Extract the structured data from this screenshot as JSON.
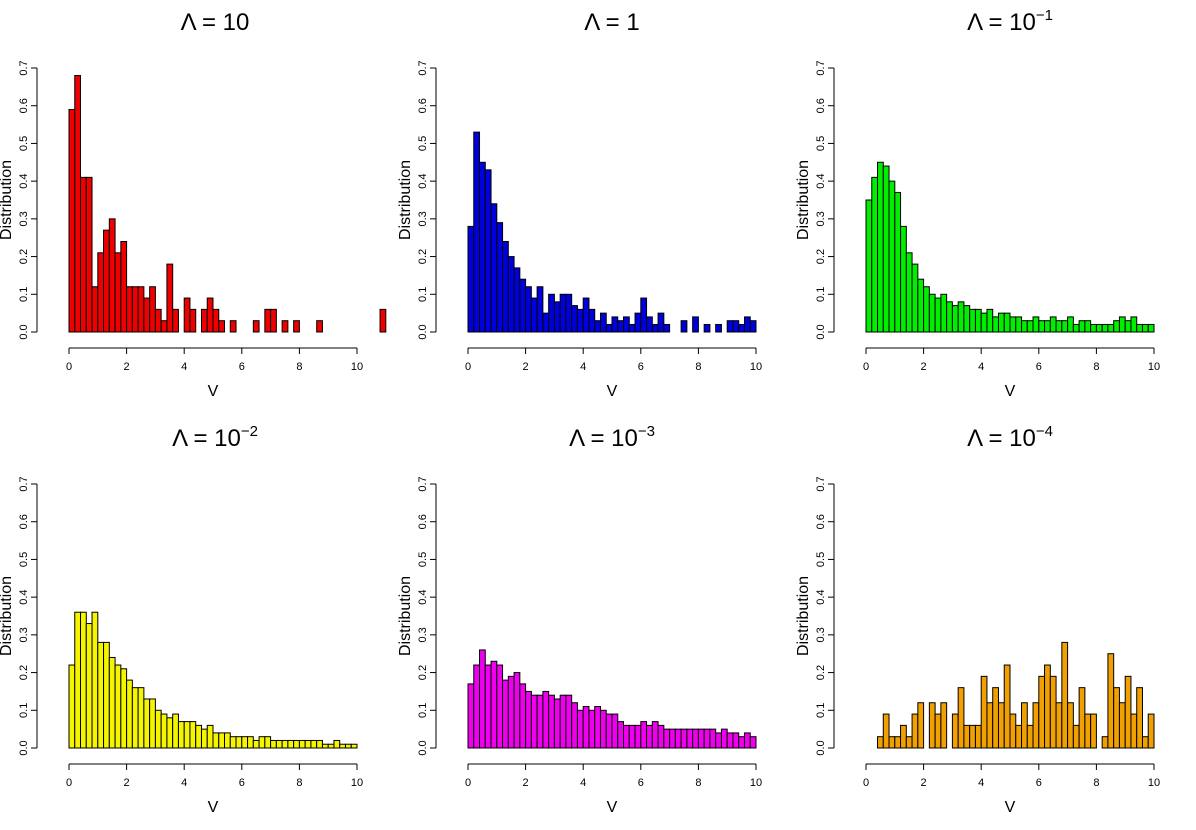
{
  "chart_data": [
    {
      "type": "bar",
      "title": {
        "base": "Λ = 10",
        "exponent": ""
      },
      "xlabel": "V",
      "ylabel": "Distribution",
      "xlim": [
        0,
        10
      ],
      "ylim": [
        0,
        0.7
      ],
      "xticks": [
        "0",
        "2",
        "4",
        "6",
        "8",
        "10"
      ],
      "yticks": [
        "0.0",
        "0.1",
        "0.2",
        "0.3",
        "0.4",
        "0.5",
        "0.6",
        "0.7"
      ],
      "color": "#ee0000",
      "bin_width": 0.2,
      "values": [
        0.59,
        0.68,
        0.41,
        0.41,
        0.12,
        0.21,
        0.27,
        0.3,
        0.21,
        0.24,
        0.12,
        0.12,
        0.12,
        0.09,
        0.12,
        0.06,
        0.03,
        0.18,
        0.06,
        0,
        0.09,
        0.06,
        0,
        0.06,
        0.09,
        0.06,
        0.03,
        0,
        0.03,
        0,
        0,
        0,
        0.03,
        0,
        0.06,
        0.06,
        0,
        0.03,
        0,
        0.03,
        0,
        0,
        0,
        0.03,
        0,
        0,
        0,
        0,
        0,
        0,
        0,
        0,
        0,
        0,
        0.06,
        0,
        0,
        0,
        0,
        0
      ]
    },
    {
      "type": "bar",
      "title": {
        "base": "Λ = 1",
        "exponent": ""
      },
      "xlabel": "V",
      "ylabel": "Distribution",
      "xlim": [
        0,
        10
      ],
      "ylim": [
        0,
        0.7
      ],
      "xticks": [
        "0",
        "2",
        "4",
        "6",
        "8",
        "10"
      ],
      "yticks": [
        "0.0",
        "0.1",
        "0.2",
        "0.3",
        "0.4",
        "0.5",
        "0.6",
        "0.7"
      ],
      "color": "#0000dd",
      "bin_width": 0.2,
      "values": [
        0.28,
        0.53,
        0.45,
        0.43,
        0.34,
        0.29,
        0.24,
        0.2,
        0.17,
        0.14,
        0.12,
        0.09,
        0.12,
        0.05,
        0.1,
        0.08,
        0.1,
        0.1,
        0.07,
        0.06,
        0.09,
        0.06,
        0.03,
        0.05,
        0.02,
        0.04,
        0.03,
        0.04,
        0.02,
        0.05,
        0.09,
        0.04,
        0.02,
        0.05,
        0.02,
        0,
        0,
        0.03,
        0,
        0.04,
        0,
        0.02,
        0,
        0.02,
        0,
        0.03,
        0.03,
        0.02,
        0.04,
        0.03
      ]
    },
    {
      "type": "bar",
      "title": {
        "base": "Λ = 10",
        "exponent": "−1"
      },
      "xlabel": "V",
      "ylabel": "Distribution",
      "xlim": [
        0,
        10
      ],
      "ylim": [
        0,
        0.7
      ],
      "xticks": [
        "0",
        "2",
        "4",
        "6",
        "8",
        "10"
      ],
      "yticks": [
        "0.0",
        "0.1",
        "0.2",
        "0.3",
        "0.4",
        "0.5",
        "0.6",
        "0.7"
      ],
      "color": "#00ee00",
      "bin_width": 0.2,
      "values": [
        0.35,
        0.41,
        0.45,
        0.44,
        0.4,
        0.37,
        0.28,
        0.21,
        0.18,
        0.14,
        0.12,
        0.1,
        0.09,
        0.1,
        0.08,
        0.07,
        0.08,
        0.07,
        0.06,
        0.06,
        0.05,
        0.06,
        0.04,
        0.05,
        0.05,
        0.04,
        0.04,
        0.03,
        0.03,
        0.04,
        0.03,
        0.03,
        0.04,
        0.03,
        0.03,
        0.04,
        0.02,
        0.03,
        0.03,
        0.02,
        0.02,
        0.02,
        0.02,
        0.03,
        0.04,
        0.03,
        0.04,
        0.02,
        0.02,
        0.02
      ]
    },
    {
      "type": "bar",
      "title": {
        "base": "Λ = 10",
        "exponent": "−2"
      },
      "xlabel": "V",
      "ylabel": "Distribution",
      "xlim": [
        0,
        10
      ],
      "ylim": [
        0,
        0.7
      ],
      "xticks": [
        "0",
        "2",
        "4",
        "6",
        "8",
        "10"
      ],
      "yticks": [
        "0.0",
        "0.1",
        "0.2",
        "0.3",
        "0.4",
        "0.5",
        "0.6",
        "0.7"
      ],
      "color": "#f5f500",
      "bin_width": 0.2,
      "values": [
        0.22,
        0.36,
        0.36,
        0.33,
        0.36,
        0.28,
        0.28,
        0.24,
        0.22,
        0.21,
        0.18,
        0.16,
        0.16,
        0.13,
        0.13,
        0.1,
        0.09,
        0.08,
        0.09,
        0.07,
        0.07,
        0.07,
        0.06,
        0.05,
        0.06,
        0.04,
        0.04,
        0.04,
        0.03,
        0.03,
        0.03,
        0.03,
        0.02,
        0.03,
        0.03,
        0.02,
        0.02,
        0.02,
        0.02,
        0.02,
        0.02,
        0.02,
        0.02,
        0.02,
        0.01,
        0.01,
        0.02,
        0.01,
        0.01,
        0.01
      ]
    },
    {
      "type": "bar",
      "title": {
        "base": "Λ = 10",
        "exponent": "−3"
      },
      "xlabel": "V",
      "ylabel": "Distribution",
      "xlim": [
        0,
        10
      ],
      "ylim": [
        0,
        0.7
      ],
      "xticks": [
        "0",
        "2",
        "4",
        "6",
        "8",
        "10"
      ],
      "yticks": [
        "0.0",
        "0.1",
        "0.2",
        "0.3",
        "0.4",
        "0.5",
        "0.6",
        "0.7"
      ],
      "color": "#ee00ee",
      "bin_width": 0.2,
      "values": [
        0.17,
        0.22,
        0.26,
        0.22,
        0.23,
        0.22,
        0.18,
        0.19,
        0.2,
        0.17,
        0.15,
        0.14,
        0.14,
        0.15,
        0.14,
        0.13,
        0.14,
        0.14,
        0.12,
        0.1,
        0.11,
        0.1,
        0.11,
        0.1,
        0.09,
        0.09,
        0.07,
        0.06,
        0.06,
        0.06,
        0.07,
        0.06,
        0.07,
        0.06,
        0.05,
        0.05,
        0.05,
        0.05,
        0.05,
        0.05,
        0.05,
        0.05,
        0.05,
        0.04,
        0.05,
        0.04,
        0.04,
        0.03,
        0.04,
        0.03
      ]
    },
    {
      "type": "bar",
      "title": {
        "base": "Λ = 10",
        "exponent": "−4"
      },
      "xlabel": "V",
      "ylabel": "Distribution",
      "xlim": [
        0,
        10
      ],
      "ylim": [
        0,
        0.7
      ],
      "xticks": [
        "0",
        "2",
        "4",
        "6",
        "8",
        "10"
      ],
      "yticks": [
        "0.0",
        "0.1",
        "0.2",
        "0.3",
        "0.4",
        "0.5",
        "0.6",
        "0.7"
      ],
      "color": "#f0a000",
      "bin_width": 0.2,
      "values": [
        0,
        0,
        0.03,
        0.09,
        0.03,
        0.03,
        0.06,
        0.03,
        0.09,
        0.12,
        0,
        0.12,
        0.09,
        0.12,
        0,
        0.09,
        0.16,
        0.06,
        0.06,
        0.06,
        0.19,
        0.12,
        0.16,
        0.12,
        0.22,
        0.09,
        0.06,
        0.12,
        0.06,
        0.12,
        0.19,
        0.22,
        0.19,
        0.12,
        0.28,
        0.12,
        0.06,
        0.16,
        0.09,
        0.09,
        0,
        0.03,
        0.25,
        0.16,
        0.12,
        0.19,
        0.09,
        0.16,
        0.03,
        0.09
      ]
    }
  ]
}
